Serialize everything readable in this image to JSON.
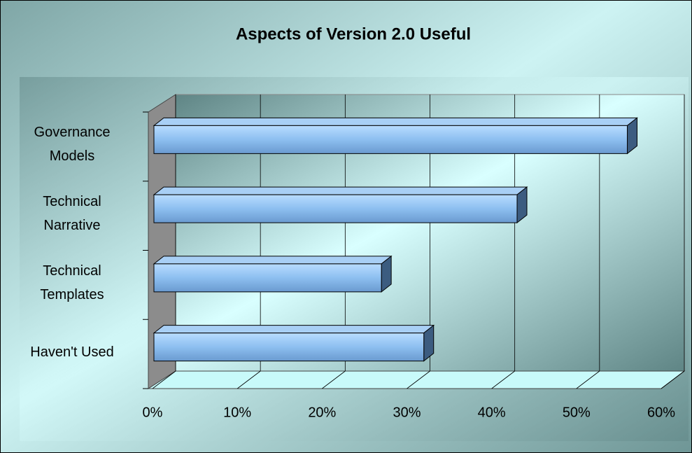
{
  "chart_data": {
    "type": "bar",
    "orientation": "horizontal",
    "title": "Aspects of Version 2.0 Useful",
    "categories": [
      "Governance Models",
      "Technical Narrative",
      "Technical Templates",
      "Haven't Used"
    ],
    "values": [
      56,
      43,
      27,
      32
    ],
    "color": "#99ccff",
    "xlim": [
      0,
      60
    ],
    "xticks": [
      {
        "value": 0,
        "label": "0%"
      },
      {
        "value": 10,
        "label": "10%"
      },
      {
        "value": 20,
        "label": "20%"
      },
      {
        "value": 30,
        "label": "30%"
      },
      {
        "value": 40,
        "label": "40%"
      },
      {
        "value": 50,
        "label": "50%"
      },
      {
        "value": 60,
        "label": "60%"
      }
    ],
    "grid": true
  }
}
